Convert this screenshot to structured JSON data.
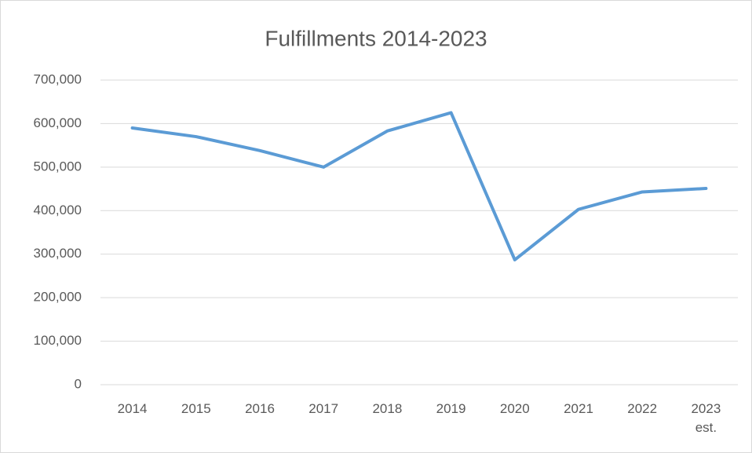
{
  "chart_data": {
    "type": "line",
    "title": "Fulfillments 2014-2023",
    "categories": [
      "2014",
      "2015",
      "2016",
      "2017",
      "2018",
      "2019",
      "2020",
      "2021",
      "2022",
      "2023 est."
    ],
    "series": [
      {
        "name": "Fulfillments",
        "color": "#5b9bd5",
        "values": [
          590000,
          570000,
          538000,
          500000,
          583000,
          625000,
          287000,
          403000,
          443000,
          451000
        ]
      }
    ],
    "ylim": [
      0,
      700000
    ],
    "yticks": [
      0,
      {
        "value": 100000,
        "label": "100,000"
      },
      {
        "value": 200000,
        "label": "200,000"
      },
      {
        "value": 300000,
        "label": "300,000"
      },
      {
        "value": 400000,
        "label": "400,000"
      },
      {
        "value": 500000,
        "label": "500,000"
      },
      {
        "value": 600000,
        "label": "600,000"
      },
      {
        "value": 700000,
        "label": "700,000"
      }
    ],
    "grid": true
  }
}
